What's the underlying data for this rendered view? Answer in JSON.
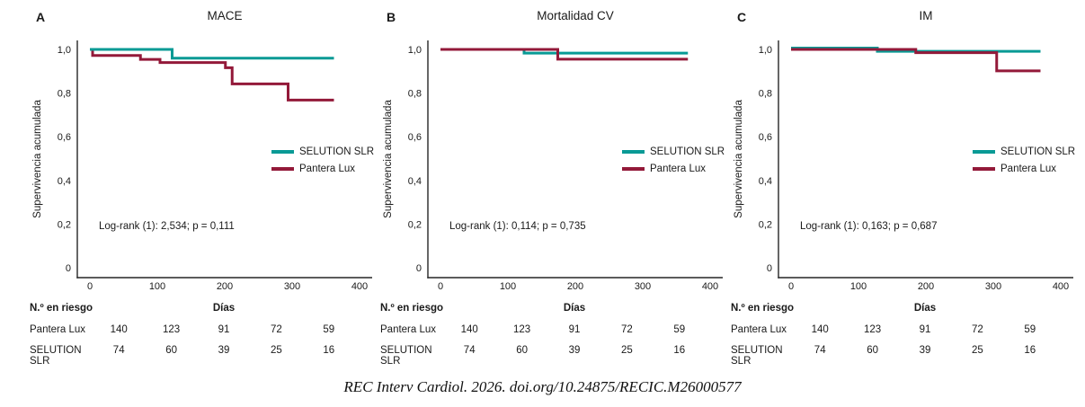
{
  "colors": {
    "selution": "#089a95",
    "pantera": "#931939",
    "axis": "#262626",
    "text": "#1a1a1a"
  },
  "chart_data": [
    {
      "type": "line",
      "step": true,
      "panel": "A",
      "title": "MACE",
      "xlabel": "Días",
      "ylabel": "Supervivencia acumulada",
      "annotation": "Log-rank (1): 2,534; p = 0,111",
      "xlim": [
        0,
        400
      ],
      "ylim": [
        0,
        1.0
      ],
      "grid": false,
      "legend_position": "right-middle",
      "xticks": [
        {
          "v": 0,
          "label": "0"
        },
        {
          "v": 100,
          "label": "100"
        },
        {
          "v": 200,
          "label": "200"
        },
        {
          "v": 300,
          "label": "300"
        },
        {
          "v": 400,
          "label": "400"
        }
      ],
      "yticks": [
        {
          "v": 0,
          "label": "0"
        },
        {
          "v": 0.2,
          "label": "0,2"
        },
        {
          "v": 0.4,
          "label": "0,4"
        },
        {
          "v": 0.6,
          "label": "0,6"
        },
        {
          "v": 0.8,
          "label": "0,8"
        },
        {
          "v": 1.0,
          "label": "1,0"
        }
      ],
      "draw_order": [
        1,
        0
      ],
      "series": [
        {
          "key": "selution",
          "name": "SELUTION SLR",
          "color": "selution",
          "x": [
            0,
            122,
            362
          ],
          "y": [
            1.0,
            0.96,
            0.96
          ]
        },
        {
          "key": "pantera",
          "name": "Pantera Lux",
          "color": "pantera",
          "x": [
            0,
            4,
            75,
            104,
            201,
            211,
            294,
            362
          ],
          "y": [
            1.0,
            0.972,
            0.954,
            0.94,
            0.916,
            0.842,
            0.768,
            0.768
          ]
        }
      ]
    },
    {
      "type": "line",
      "step": true,
      "panel": "B",
      "title": "Mortalidad CV",
      "xlabel": "Días",
      "ylabel": "Supervivencia acumulada",
      "annotation": "Log-rank (1): 0,114; p = 0,735",
      "xlim": [
        0,
        400
      ],
      "ylim": [
        0,
        1.0
      ],
      "grid": false,
      "legend_position": "right-middle",
      "xticks": [
        {
          "v": 0,
          "label": "0"
        },
        {
          "v": 100,
          "label": "100"
        },
        {
          "v": 200,
          "label": "200"
        },
        {
          "v": 300,
          "label": "300"
        },
        {
          "v": 400,
          "label": "400"
        }
      ],
      "yticks": [
        {
          "v": 0,
          "label": "0"
        },
        {
          "v": 0.2,
          "label": "0,2"
        },
        {
          "v": 0.4,
          "label": "0,4"
        },
        {
          "v": 0.6,
          "label": "0,6"
        },
        {
          "v": 0.8,
          "label": "0,8"
        },
        {
          "v": 1.0,
          "label": "1,0"
        }
      ],
      "draw_order": [
        0,
        1
      ],
      "series": [
        {
          "key": "selution",
          "name": "SELUTION SLR",
          "color": "selution",
          "x": [
            0,
            124,
            367
          ],
          "y": [
            1.0,
            0.983,
            0.983
          ]
        },
        {
          "key": "pantera",
          "name": "Pantera Lux",
          "color": "pantera",
          "x": [
            0,
            174,
            367
          ],
          "y": [
            1.0,
            0.955,
            0.955
          ]
        }
      ]
    },
    {
      "type": "line",
      "step": true,
      "panel": "C",
      "title": "IM",
      "xlabel": "Días",
      "ylabel": "Supervivencia acumulada",
      "annotation": "Log-rank (1): 0,163; p = 0,687",
      "xlim": [
        0,
        400
      ],
      "ylim": [
        0,
        1.0
      ],
      "grid": false,
      "legend_position": "right-middle",
      "xticks": [
        {
          "v": 0,
          "label": "0"
        },
        {
          "v": 100,
          "label": "100"
        },
        {
          "v": 200,
          "label": "200"
        },
        {
          "v": 300,
          "label": "300"
        },
        {
          "v": 400,
          "label": "400"
        }
      ],
      "yticks": [
        {
          "v": 0,
          "label": "0"
        },
        {
          "v": 0.2,
          "label": "0,2"
        },
        {
          "v": 0.4,
          "label": "0,4"
        },
        {
          "v": 0.6,
          "label": "0,6"
        },
        {
          "v": 0.8,
          "label": "0,8"
        },
        {
          "v": 1.0,
          "label": "1,0"
        }
      ],
      "draw_order": [
        0,
        1
      ],
      "series": [
        {
          "key": "selution",
          "name": "SELUTION SLR",
          "color": "selution",
          "dy": -1.5,
          "x": [
            0,
            128,
            370
          ],
          "y": [
            1.0,
            0.985,
            0.985
          ]
        },
        {
          "key": "pantera",
          "name": "Pantera Lux",
          "color": "pantera",
          "x": [
            0,
            185,
            305,
            370
          ],
          "y": [
            1.0,
            0.985,
            0.902,
            0.902
          ]
        }
      ]
    }
  ],
  "risk_table": {
    "title": "N.º en riesgo",
    "days_header": "Días",
    "rows": [
      {
        "label": "Pantera Lux",
        "values": [
          "140",
          "123",
          "91",
          "72",
          "59"
        ]
      },
      {
        "label": "SELUTION SLR",
        "values": [
          "74",
          "60",
          "39",
          "25",
          "16"
        ]
      }
    ]
  },
  "footer": {
    "citation": "REC Interv Cardiol. 2026. doi.org/10.24875/RECIC.M26000577"
  }
}
